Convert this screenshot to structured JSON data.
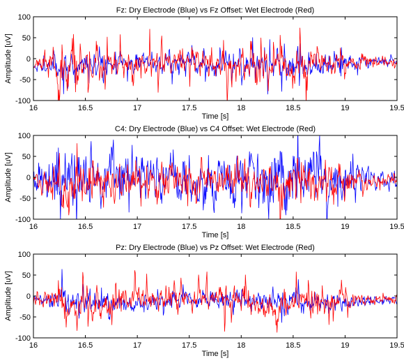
{
  "colors": {
    "dry": "#0000ff",
    "wet": "#ff0000",
    "axis": "#000000",
    "background": "#ffffff"
  },
  "chart_data": [
    {
      "type": "line",
      "title": "Fz: Dry Electrode (Blue) vs Fz Offset: Wet Electrode (Red)",
      "xlabel": "Time [s]",
      "ylabel": "Amplitude [uV]",
      "xlim": [
        16,
        19.5
      ],
      "ylim": [
        -100,
        100
      ],
      "xticks": [
        "16",
        "16.5",
        "17",
        "17.5",
        "18",
        "18.5",
        "19",
        "19.5"
      ],
      "yticks": [
        "100",
        "50",
        "0",
        "-50",
        "-100"
      ],
      "grid": false,
      "series": [
        {
          "color": "#0000ff",
          "seed": 11,
          "sd": 13,
          "spike": 38,
          "offset": -12
        },
        {
          "color": "#ff0000",
          "seed": 23,
          "sd": 16,
          "spike": 50,
          "offset": -14
        }
      ]
    },
    {
      "type": "line",
      "title": "C4: Dry Electrode (Blue) vs C4 Offset: Wet Electrode (Red)",
      "xlabel": "Time [s]",
      "ylabel": "Amplitude [uV]",
      "xlim": [
        16,
        19.5
      ],
      "ylim": [
        -100,
        100
      ],
      "xticks": [
        "16",
        "16.5",
        "17",
        "17.5",
        "18",
        "18.5",
        "19",
        "19.5"
      ],
      "yticks": [
        "100",
        "50",
        "0",
        "-50",
        "-100"
      ],
      "grid": false,
      "series": [
        {
          "color": "#0000ff",
          "seed": 37,
          "sd": 30,
          "spike": 75,
          "offset": -5
        },
        {
          "color": "#ff0000",
          "seed": 41,
          "sd": 20,
          "spike": 45,
          "offset": -10
        }
      ]
    },
    {
      "type": "line",
      "title": "Pz: Dry Electrode (Blue) vs Pz Offset: Wet Electrode (Red)",
      "xlabel": "Time [s]",
      "ylabel": "Amplitude [uV]",
      "xlim": [
        16,
        19.5
      ],
      "ylim": [
        -100,
        100
      ],
      "xticks": [
        "16",
        "16.5",
        "17",
        "17.5",
        "18",
        "18.5",
        "19",
        "19.5"
      ],
      "yticks": [
        "100",
        "50",
        "0",
        "-50",
        "-100"
      ],
      "grid": false,
      "series": [
        {
          "color": "#0000ff",
          "seed": 53,
          "sd": 11,
          "spike": 28,
          "offset": -10
        },
        {
          "color": "#ff0000",
          "seed": 67,
          "sd": 14,
          "spike": 40,
          "offset": -14
        }
      ]
    }
  ]
}
